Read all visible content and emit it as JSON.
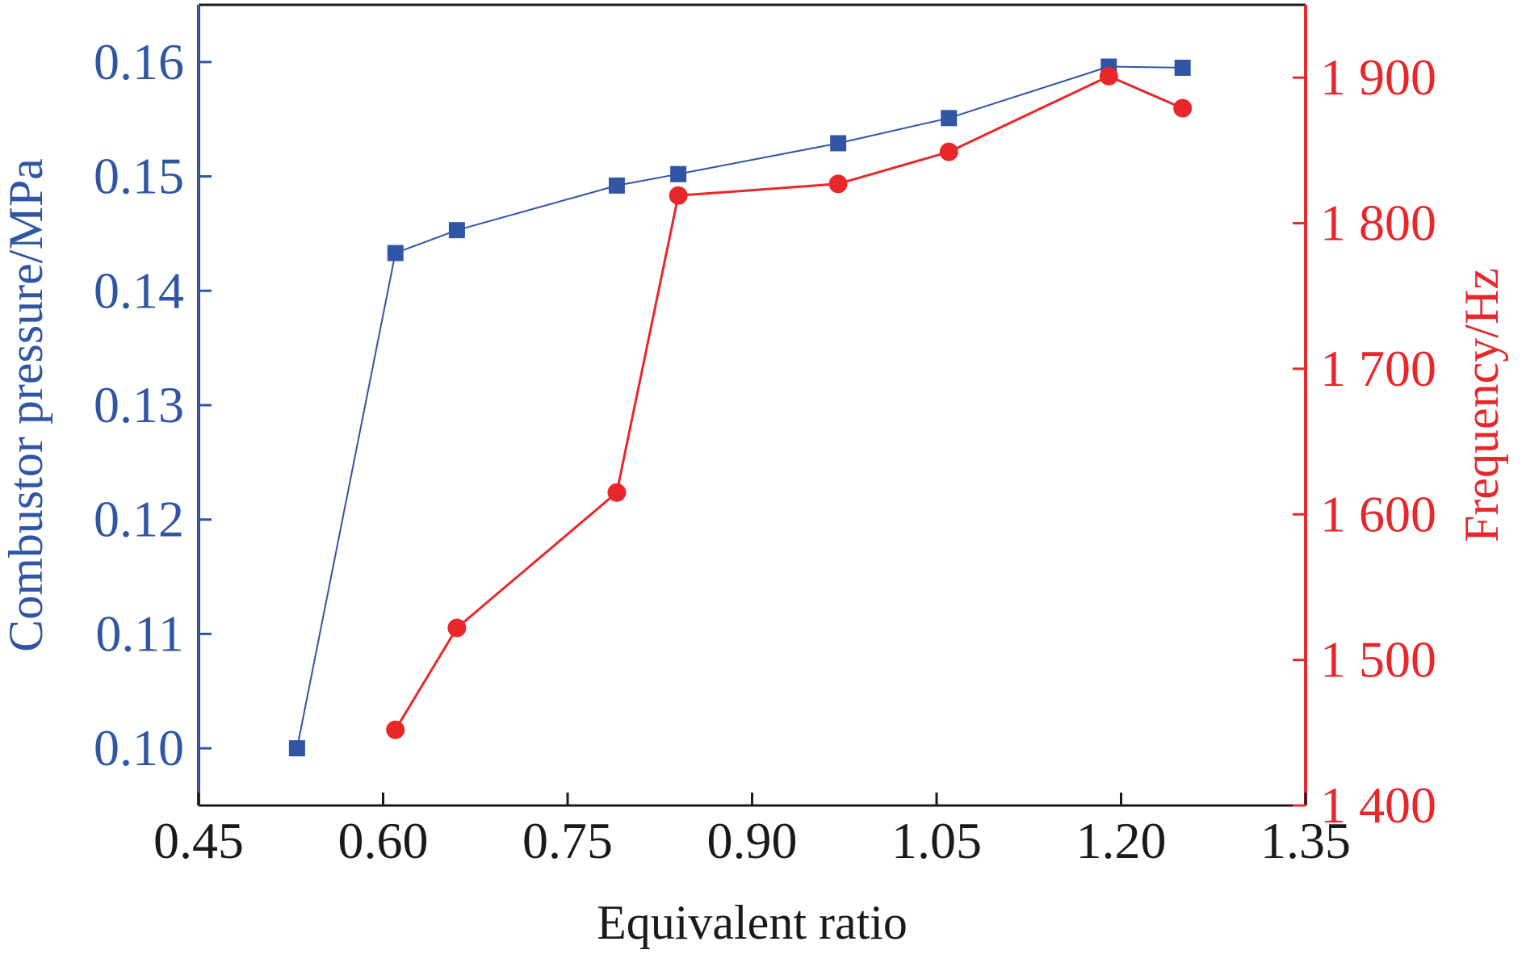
{
  "chart_data": {
    "type": "line",
    "xlabel": "Equivalent ratio",
    "ylabel_left": "Combustor pressure/MPa",
    "ylabel_right": "Frequency/Hz",
    "xlim": [
      0.45,
      1.35
    ],
    "ylim_left": [
      0.095,
      0.165
    ],
    "ylim_right": [
      1400,
      1950
    ],
    "x_ticks": [
      0.45,
      0.6,
      0.75,
      0.9,
      1.05,
      1.2,
      1.35
    ],
    "x_tick_labels": [
      "0.45",
      "0.60",
      "0.75",
      "0.90",
      "1.05",
      "1.20",
      "1.35"
    ],
    "y_left_ticks": [
      0.1,
      0.11,
      0.12,
      0.13,
      0.14,
      0.15,
      0.16
    ],
    "y_left_tick_labels": [
      "0.10",
      "0.11",
      "0.12",
      "0.13",
      "0.14",
      "0.15",
      "0.16"
    ],
    "y_right_ticks": [
      1400,
      1500,
      1600,
      1700,
      1800,
      1900
    ],
    "y_right_tick_labels": [
      "1 400",
      "1 500",
      "1 600",
      "1 700",
      "1 800",
      "1 900"
    ],
    "grid": false,
    "legend": "none",
    "series": [
      {
        "axis": "left",
        "marker": "square",
        "color": "#2f55a4",
        "x": [
          0.53,
          0.61,
          0.66,
          0.79,
          0.84,
          0.97,
          1.06,
          1.19,
          1.25
        ],
        "values": [
          0.1,
          0.1433,
          0.1453,
          0.1492,
          0.1502,
          0.1529,
          0.1551,
          0.1596,
          0.1595
        ]
      },
      {
        "axis": "right",
        "marker": "circle",
        "color": "#e8272a",
        "x": [
          0.61,
          0.66,
          0.79,
          0.84,
          0.97,
          1.06,
          1.19,
          1.25
        ],
        "values": [
          1452,
          1522,
          1615,
          1819,
          1827,
          1849,
          1901,
          1879
        ]
      }
    ],
    "colors": {
      "left_axis": "#2f55a4",
      "right_axis": "#e8272a",
      "x_axis": "#1a1a1a"
    }
  }
}
